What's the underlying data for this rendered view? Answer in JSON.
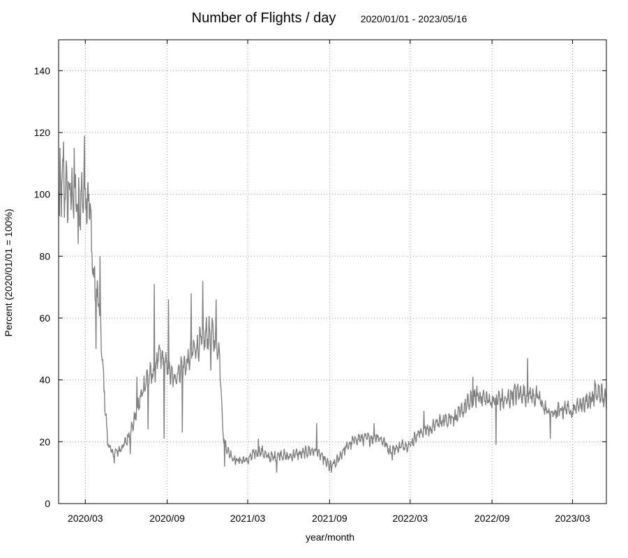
{
  "chart_data": {
    "type": "line",
    "title": "Number of Flights / day",
    "subtitle": "2020/01/01 - 2023/05/16",
    "xlabel": "year/month",
    "ylabel": "Percent (2020/01/01 = 100%)",
    "ylim": [
      0,
      150
    ],
    "yticks": [
      0,
      20,
      40,
      60,
      80,
      100,
      120,
      140
    ],
    "xlim": [
      "2020-01-01",
      "2023-05-16"
    ],
    "xticks": [
      {
        "date": "2020-03-01",
        "label": "2020/03"
      },
      {
        "date": "2020-09-01",
        "label": "2020/09"
      },
      {
        "date": "2021-03-01",
        "label": "2021/03"
      },
      {
        "date": "2021-09-01",
        "label": "2021/09"
      },
      {
        "date": "2022-03-01",
        "label": "2022/03"
      },
      {
        "date": "2022-09-01",
        "label": "2022/09"
      },
      {
        "date": "2023-03-01",
        "label": "2023/03"
      }
    ],
    "grid": true,
    "line_color": "#808080",
    "series": [
      {
        "points": [
          [
            "2020-01-01",
            103
          ],
          [
            "2020-01-15",
            102
          ],
          [
            "2020-02-01",
            100
          ],
          [
            "2020-02-15",
            96
          ],
          [
            "2020-03-01",
            103
          ],
          [
            "2020-03-10",
            98
          ],
          [
            "2020-03-20",
            72
          ],
          [
            "2020-04-01",
            65
          ],
          [
            "2020-04-10",
            42
          ],
          [
            "2020-04-20",
            20
          ],
          [
            "2020-05-01",
            16
          ],
          [
            "2020-05-15",
            17
          ],
          [
            "2020-06-01",
            20
          ],
          [
            "2020-06-15",
            25
          ],
          [
            "2020-07-01",
            33
          ],
          [
            "2020-07-15",
            40
          ],
          [
            "2020-08-01",
            42
          ],
          [
            "2020-08-15",
            48
          ],
          [
            "2020-09-01",
            44
          ],
          [
            "2020-09-15",
            40
          ],
          [
            "2020-10-01",
            44
          ],
          [
            "2020-10-15",
            45
          ],
          [
            "2020-11-01",
            50
          ],
          [
            "2020-11-15",
            52
          ],
          [
            "2020-12-01",
            55
          ],
          [
            "2020-12-15",
            54
          ],
          [
            "2020-12-28",
            48
          ],
          [
            "2021-01-05",
            22
          ],
          [
            "2021-01-15",
            17
          ],
          [
            "2021-02-01",
            14
          ],
          [
            "2021-02-15",
            14
          ],
          [
            "2021-03-01",
            14
          ],
          [
            "2021-03-15",
            16
          ],
          [
            "2021-04-01",
            17
          ],
          [
            "2021-04-15",
            15
          ],
          [
            "2021-05-01",
            15
          ],
          [
            "2021-05-15",
            16
          ],
          [
            "2021-06-01",
            15
          ],
          [
            "2021-06-15",
            16
          ],
          [
            "2021-07-01",
            16
          ],
          [
            "2021-07-15",
            17
          ],
          [
            "2021-08-01",
            17
          ],
          [
            "2021-08-15",
            15
          ],
          [
            "2021-09-01",
            12
          ],
          [
            "2021-09-15",
            13
          ],
          [
            "2021-10-01",
            17
          ],
          [
            "2021-10-15",
            19
          ],
          [
            "2021-11-01",
            21
          ],
          [
            "2021-11-15",
            21
          ],
          [
            "2021-12-01",
            21
          ],
          [
            "2021-12-15",
            22
          ],
          [
            "2022-01-01",
            20
          ],
          [
            "2022-01-15",
            17
          ],
          [
            "2022-02-01",
            18
          ],
          [
            "2022-02-15",
            19
          ],
          [
            "2022-03-01",
            19
          ],
          [
            "2022-03-15",
            22
          ],
          [
            "2022-04-01",
            24
          ],
          [
            "2022-04-15",
            24
          ],
          [
            "2022-05-01",
            26
          ],
          [
            "2022-05-15",
            27
          ],
          [
            "2022-06-01",
            28
          ],
          [
            "2022-06-15",
            28
          ],
          [
            "2022-07-01",
            31
          ],
          [
            "2022-07-15",
            33
          ],
          [
            "2022-08-01",
            35
          ],
          [
            "2022-08-15",
            34
          ],
          [
            "2022-09-01",
            33
          ],
          [
            "2022-09-15",
            34
          ],
          [
            "2022-10-01",
            33
          ],
          [
            "2022-10-15",
            35
          ],
          [
            "2022-11-01",
            36
          ],
          [
            "2022-11-15",
            35
          ],
          [
            "2022-12-01",
            35
          ],
          [
            "2022-12-15",
            34
          ],
          [
            "2023-01-01",
            30
          ],
          [
            "2023-01-15",
            29
          ],
          [
            "2023-02-01",
            30
          ],
          [
            "2023-02-15",
            31
          ],
          [
            "2023-03-01",
            30
          ],
          [
            "2023-03-15",
            32
          ],
          [
            "2023-04-01",
            33
          ],
          [
            "2023-04-15",
            34
          ],
          [
            "2023-05-01",
            36
          ],
          [
            "2023-05-16",
            33
          ]
        ],
        "spikes": [
          [
            "2020-01-03",
            93
          ],
          [
            "2020-01-12",
            117
          ],
          [
            "2020-01-22",
            92
          ],
          [
            "2020-02-05",
            115
          ],
          [
            "2020-02-14",
            84
          ],
          [
            "2020-02-28",
            119
          ],
          [
            "2020-03-05",
            91
          ],
          [
            "2020-03-25",
            50
          ],
          [
            "2020-04-03",
            80
          ],
          [
            "2020-04-12",
            36
          ],
          [
            "2020-05-05",
            13
          ],
          [
            "2020-06-10",
            16
          ],
          [
            "2020-06-25",
            41
          ],
          [
            "2020-07-20",
            24
          ],
          [
            "2020-08-03",
            71
          ],
          [
            "2020-08-25",
            21
          ],
          [
            "2020-09-04",
            66
          ],
          [
            "2020-10-05",
            23
          ],
          [
            "2020-10-25",
            68
          ],
          [
            "2020-11-20",
            72
          ],
          [
            "2020-12-08",
            43
          ],
          [
            "2020-12-20",
            66
          ],
          [
            "2021-01-08",
            12
          ],
          [
            "2021-03-25",
            21
          ],
          [
            "2021-05-05",
            10
          ],
          [
            "2021-08-03",
            26
          ],
          [
            "2021-09-05",
            10
          ],
          [
            "2021-12-10",
            26
          ],
          [
            "2022-01-20",
            14
          ],
          [
            "2022-04-01",
            30
          ],
          [
            "2022-07-20",
            41
          ],
          [
            "2022-09-10",
            19
          ],
          [
            "2022-11-20",
            47
          ],
          [
            "2023-01-10",
            21
          ],
          [
            "2023-04-20",
            40
          ]
        ]
      }
    ]
  }
}
